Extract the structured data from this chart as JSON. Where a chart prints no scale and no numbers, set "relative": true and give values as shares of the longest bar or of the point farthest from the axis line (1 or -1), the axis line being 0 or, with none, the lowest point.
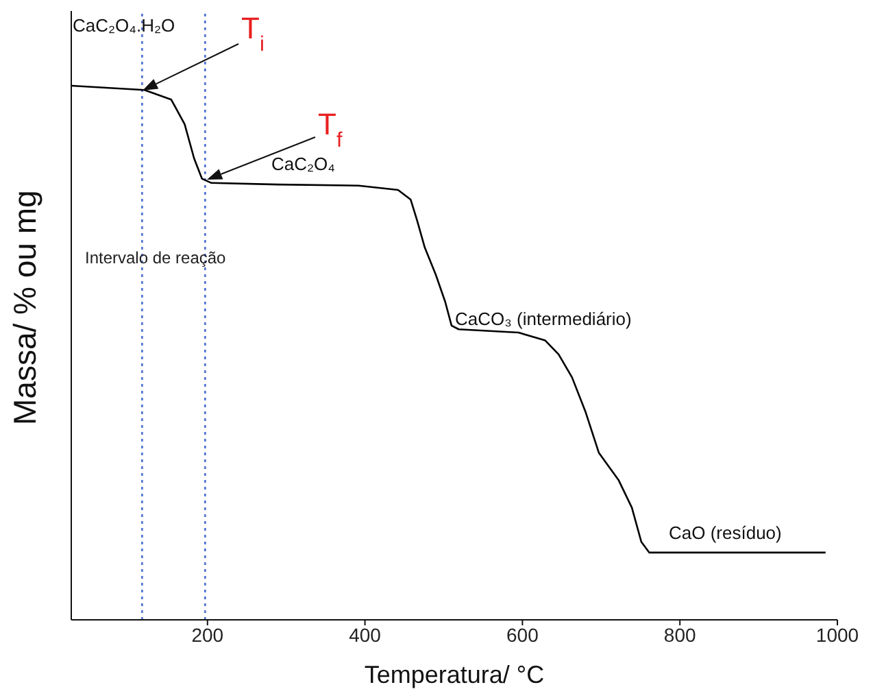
{
  "chart_data": {
    "type": "line",
    "xlabel": "Temperatura/ °C",
    "ylabel": "Massa/ % ou mg",
    "relative": true,
    "color": "#000000",
    "marker": "none",
    "tick_labels": "x",
    "x": [
      27,
      120,
      154,
      171,
      183,
      193,
      205,
      290,
      392,
      442,
      458,
      466,
      476,
      490,
      502,
      510,
      519,
      595,
      629,
      646,
      663,
      680,
      697,
      722,
      739,
      751,
      761,
      883,
      985
    ],
    "values": [
      1.0,
      0.992,
      0.974,
      0.928,
      0.864,
      0.826,
      0.818,
      0.815,
      0.813,
      0.805,
      0.787,
      0.749,
      0.697,
      0.646,
      0.595,
      0.551,
      0.544,
      0.538,
      0.523,
      0.497,
      0.454,
      0.39,
      0.313,
      0.262,
      0.21,
      0.146,
      0.126,
      0.126,
      0.126
    ],
    "xlim": [
      27,
      1000
    ],
    "xticks": [
      200,
      400,
      600,
      800,
      1000
    ],
    "ref_lines": [
      {
        "axis": "x",
        "value": 117,
        "color": "#4a6fd0",
        "line_style": "dotted"
      },
      {
        "axis": "x",
        "value": 197,
        "color": "#4a6fd0",
        "line_style": "dotted"
      }
    ],
    "annotations": [
      "CaC₂O₄.H₂O",
      "T$_{i}$",
      "T$_{f}$",
      "CaC₂O₄",
      "Intervalo de reação",
      "CaCO₃ (intermediário)",
      "CaO (resíduo)"
    ]
  }
}
